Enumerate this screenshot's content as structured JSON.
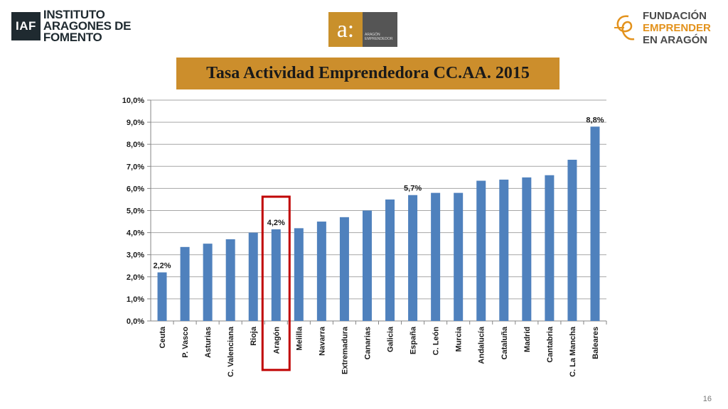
{
  "logos": {
    "iaf": {
      "badge": "IAF",
      "lines": [
        "INSTITUTO",
        "ARAGONES DE",
        "FOMENTO"
      ]
    },
    "aragon": {
      "mark": "a:",
      "lines": [
        "ARAGÓN",
        "EMPRENDEDOR"
      ]
    },
    "fundacion": {
      "lines": [
        "FUNDACIÓN",
        "EMPRENDER",
        "EN ARAGÓN"
      ]
    }
  },
  "page_number": "16",
  "chart_data": {
    "type": "bar",
    "title": "Tasa Actividad Emprendedora CC.AA. 2015",
    "categories": [
      "Ceuta",
      "P. Vasco",
      "Asturias",
      "C. Valenciana",
      "Rioja",
      "Aragón",
      "Melilla",
      "Navarra",
      "Extremadura",
      "Canarias",
      "Galicia",
      "España",
      "C. León",
      "Murcia",
      "Andalucía",
      "Cataluña",
      "Madrid",
      "Cantabria",
      "C. La Mancha",
      "Baleares"
    ],
    "values": [
      2.2,
      3.35,
      3.5,
      3.7,
      4.0,
      4.15,
      4.2,
      4.5,
      4.7,
      5.0,
      5.5,
      5.7,
      5.8,
      5.8,
      6.35,
      6.4,
      6.5,
      6.6,
      7.3,
      8.8
    ],
    "data_labels": {
      "0": "2,2%",
      "5": "4,2%",
      "11": "5,7%",
      "19": "8,8%"
    },
    "ylim": [
      0,
      10
    ],
    "yticks": [
      "0,0%",
      "1,0%",
      "2,0%",
      "3,0%",
      "4,0%",
      "5,0%",
      "6,0%",
      "7,0%",
      "8,0%",
      "9,0%",
      "10,0%"
    ],
    "highlight_category": "Aragón",
    "bar_color": "#4f81bd",
    "highlight_color": "#c00000",
    "grid": true,
    "legend": "none"
  }
}
